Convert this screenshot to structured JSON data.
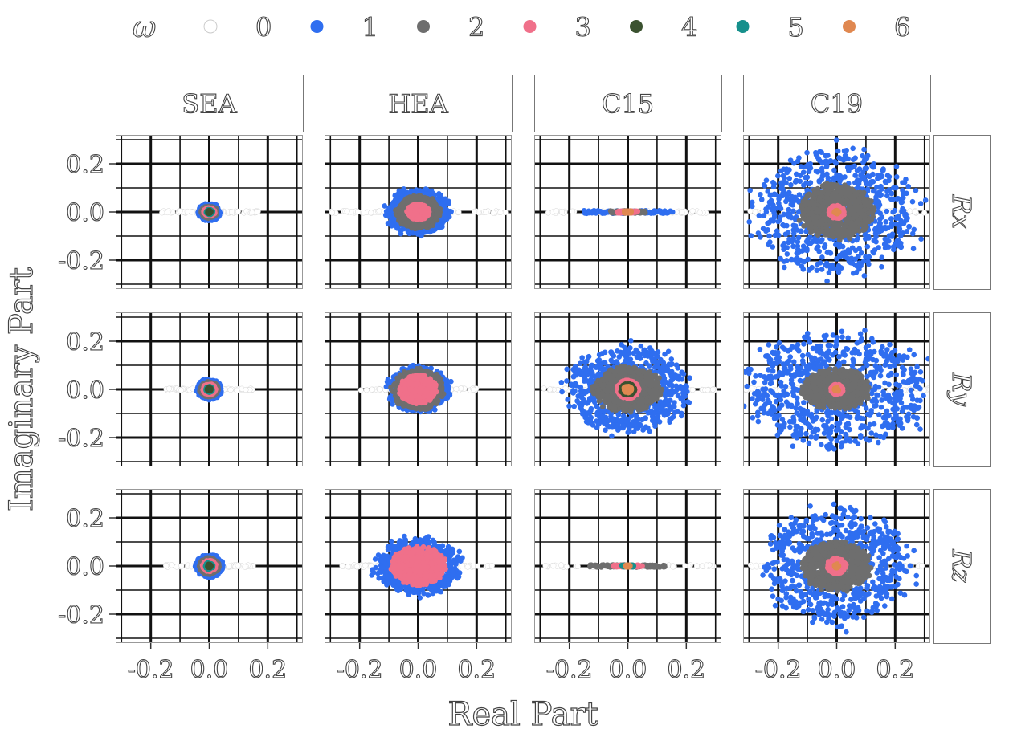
{
  "chart_data": {
    "type": "scatter",
    "title": "",
    "xlabel": "Real Part",
    "ylabel": "Imaginary Part",
    "xlim": [
      -0.32,
      0.32
    ],
    "ylim": [
      -0.32,
      0.32
    ],
    "x_ticks": [
      -0.2,
      0.0,
      0.2
    ],
    "x_tick_labels": [
      "-0.2",
      "0.0",
      "0.2"
    ],
    "y_ticks": [
      0.2,
      0.0,
      -0.2
    ],
    "y_tick_labels": [
      "0.2",
      "0.0",
      "-0.2"
    ],
    "legend": {
      "title": "ω",
      "position": "top",
      "entries": [
        {
          "label": "0",
          "color": "#ffffff"
        },
        {
          "label": "1",
          "color": "#2f6ef0"
        },
        {
          "label": "2",
          "color": "#6e6e6e"
        },
        {
          "label": "3",
          "color": "#f0708a"
        },
        {
          "label": "4",
          "color": "#3b5230"
        },
        {
          "label": "5",
          "color": "#16908c"
        },
        {
          "label": "6",
          "color": "#e08850"
        }
      ]
    },
    "columns": [
      "SEA",
      "HEA",
      "C15",
      "C19"
    ],
    "rows": [
      "Rx",
      "Ry",
      "Rz"
    ],
    "panels": [
      {
        "column": "SEA",
        "row": "Rx",
        "line": 0.17,
        "line_color": "#ffffff",
        "real_only": false,
        "clusters": [
          [
            1,
            0.036,
            0.034
          ],
          [
            2,
            0.026,
            0.024
          ],
          [
            3,
            0.018,
            0.017
          ],
          [
            5,
            0.011,
            0.011
          ],
          [
            4,
            0.006,
            0.006
          ]
        ]
      },
      {
        "column": "HEA",
        "row": "Rx",
        "line": 0.3,
        "line_color": "#ffffff",
        "real_only": false,
        "clusters": [
          [
            1,
            0.1,
            0.09
          ],
          [
            2,
            0.07,
            0.065
          ],
          [
            3,
            0.035,
            0.03
          ]
        ]
      },
      {
        "column": "C15",
        "row": "Rx",
        "line": 0.28,
        "line_color": "#ffffff",
        "real_only": true,
        "clusters": [
          [
            1,
            0.155,
            0.006
          ],
          [
            2,
            0.06,
            0.005
          ],
          [
            3,
            0.035,
            0.004
          ],
          [
            6,
            0.012,
            0.004
          ]
        ]
      },
      {
        "column": "C19",
        "row": "Rx",
        "line": 0.3,
        "line_color": "#ffffff",
        "real_only": false,
        "clusters": [
          [
            1,
            0.26,
            0.25
          ],
          [
            2,
            0.12,
            0.11
          ],
          [
            3,
            0.025,
            0.025
          ],
          [
            6,
            0.008,
            0.008
          ]
        ]
      },
      {
        "column": "SEA",
        "row": "Ry",
        "line": 0.15,
        "line_color": "#ffffff",
        "real_only": false,
        "clusters": [
          [
            1,
            0.04,
            0.04
          ],
          [
            2,
            0.03,
            0.03
          ],
          [
            3,
            0.021,
            0.021
          ],
          [
            5,
            0.012,
            0.012
          ],
          [
            4,
            0.007,
            0.007
          ]
        ]
      },
      {
        "column": "HEA",
        "row": "Ry",
        "line": 0.2,
        "line_color": "#ffffff",
        "real_only": false,
        "clusters": [
          [
            1,
            0.1,
            0.09
          ],
          [
            2,
            0.085,
            0.08
          ],
          [
            3,
            0.06,
            0.055
          ]
        ]
      },
      {
        "column": "C15",
        "row": "Ry",
        "line": 0.3,
        "line_color": "#ffffff",
        "real_only": false,
        "clusters": [
          [
            1,
            0.2,
            0.17
          ],
          [
            2,
            0.11,
            0.09
          ],
          [
            3,
            0.035,
            0.035
          ],
          [
            4,
            0.023,
            0.023
          ],
          [
            6,
            0.013,
            0.013
          ]
        ]
      },
      {
        "column": "C19",
        "row": "Ry",
        "line": 0.32,
        "line_color": "#ffffff",
        "real_only": false,
        "clusters": [
          [
            1,
            0.3,
            0.23
          ],
          [
            2,
            0.11,
            0.08
          ],
          [
            3,
            0.02,
            0.02
          ],
          [
            6,
            0.008,
            0.008
          ]
        ]
      },
      {
        "column": "SEA",
        "row": "Rz",
        "line": 0.15,
        "line_color": "#ffffff",
        "real_only": false,
        "clusters": [
          [
            1,
            0.045,
            0.045
          ],
          [
            2,
            0.032,
            0.032
          ],
          [
            3,
            0.022,
            0.022
          ],
          [
            5,
            0.013,
            0.013
          ],
          [
            4,
            0.007,
            0.007
          ]
        ]
      },
      {
        "column": "HEA",
        "row": "Rz",
        "line": 0.27,
        "line_color": "#ffffff",
        "real_only": false,
        "clusters": [
          [
            1,
            0.14,
            0.11
          ],
          [
            3,
            0.09,
            0.075
          ]
        ]
      },
      {
        "column": "C15",
        "row": "Rz",
        "line": 0.3,
        "line_color": "#ffffff",
        "real_only": true,
        "clusters": [
          [
            2,
            0.13,
            0.005
          ],
          [
            3,
            0.05,
            0.004
          ],
          [
            5,
            0.02,
            0.004
          ],
          [
            6,
            0.008,
            0.004
          ]
        ]
      },
      {
        "column": "C19",
        "row": "Rz",
        "line": 0.3,
        "line_color": "#ffffff",
        "real_only": false,
        "clusters": [
          [
            1,
            0.24,
            0.23
          ],
          [
            2,
            0.11,
            0.1
          ],
          [
            3,
            0.03,
            0.03
          ],
          [
            6,
            0.008,
            0.008
          ]
        ]
      }
    ]
  }
}
